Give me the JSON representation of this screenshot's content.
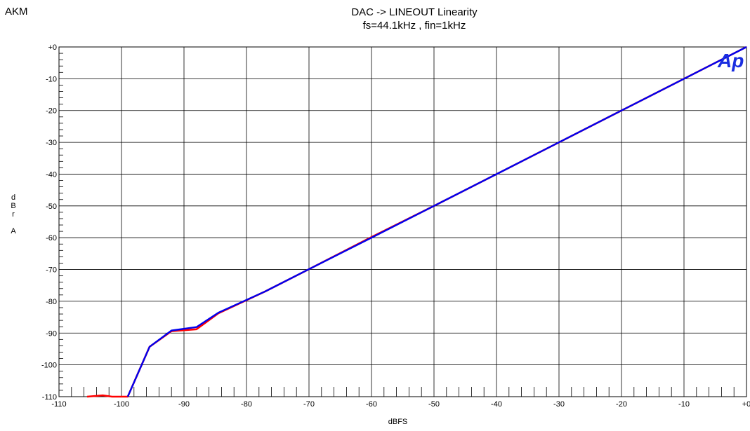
{
  "header": {
    "corner_label": "AKM",
    "title_line1": "DAC -> LINEOUT  Linearity",
    "title_line2": "fs=44.1kHz , fin=1kHz"
  },
  "logo": {
    "text": "Ap",
    "color": "#1a2ee0"
  },
  "chart_data": {
    "type": "line",
    "title": "DAC -> LINEOUT  Linearity",
    "subtitle": "fs=44.1kHz , fin=1kHz",
    "xlabel": "dBFS",
    "ylabel": "dBr A",
    "xlim": [
      -110,
      0
    ],
    "ylim": [
      -110,
      0
    ],
    "x_ticks": [
      "-110",
      "-100",
      "-90",
      "-80",
      "-70",
      "-60",
      "-50",
      "-40",
      "-30",
      "-20",
      "-10",
      "+0"
    ],
    "y_ticks": [
      "+0",
      "-10",
      "-20",
      "-30",
      "-40",
      "-50",
      "-60",
      "-70",
      "-80",
      "-90",
      "-100",
      "-110"
    ],
    "grid": true,
    "series": [
      {
        "color": "#ff0000",
        "x": [
          -105.5,
          -103,
          -101.5,
          -99,
          -95.5,
          -92,
          -88,
          -84.5,
          -77,
          -70,
          -60,
          -50,
          -40,
          -30,
          -20,
          -10,
          0
        ],
        "y": [
          -110,
          -109.6,
          -110,
          -110,
          -94.3,
          -89.4,
          -88.8,
          -83.8,
          -76.9,
          -69.9,
          -59.8,
          -50,
          -40,
          -30,
          -20,
          -10,
          0
        ]
      },
      {
        "color": "#0000ee",
        "x": [
          -99,
          -95.5,
          -92,
          -88,
          -84.5,
          -77,
          -70,
          -60,
          -50,
          -40,
          -30,
          -20,
          -10,
          0
        ],
        "y": [
          -110,
          -94.3,
          -89.2,
          -88.1,
          -83.6,
          -76.9,
          -69.9,
          -60,
          -50,
          -40,
          -30,
          -20,
          -10,
          0
        ]
      }
    ]
  }
}
